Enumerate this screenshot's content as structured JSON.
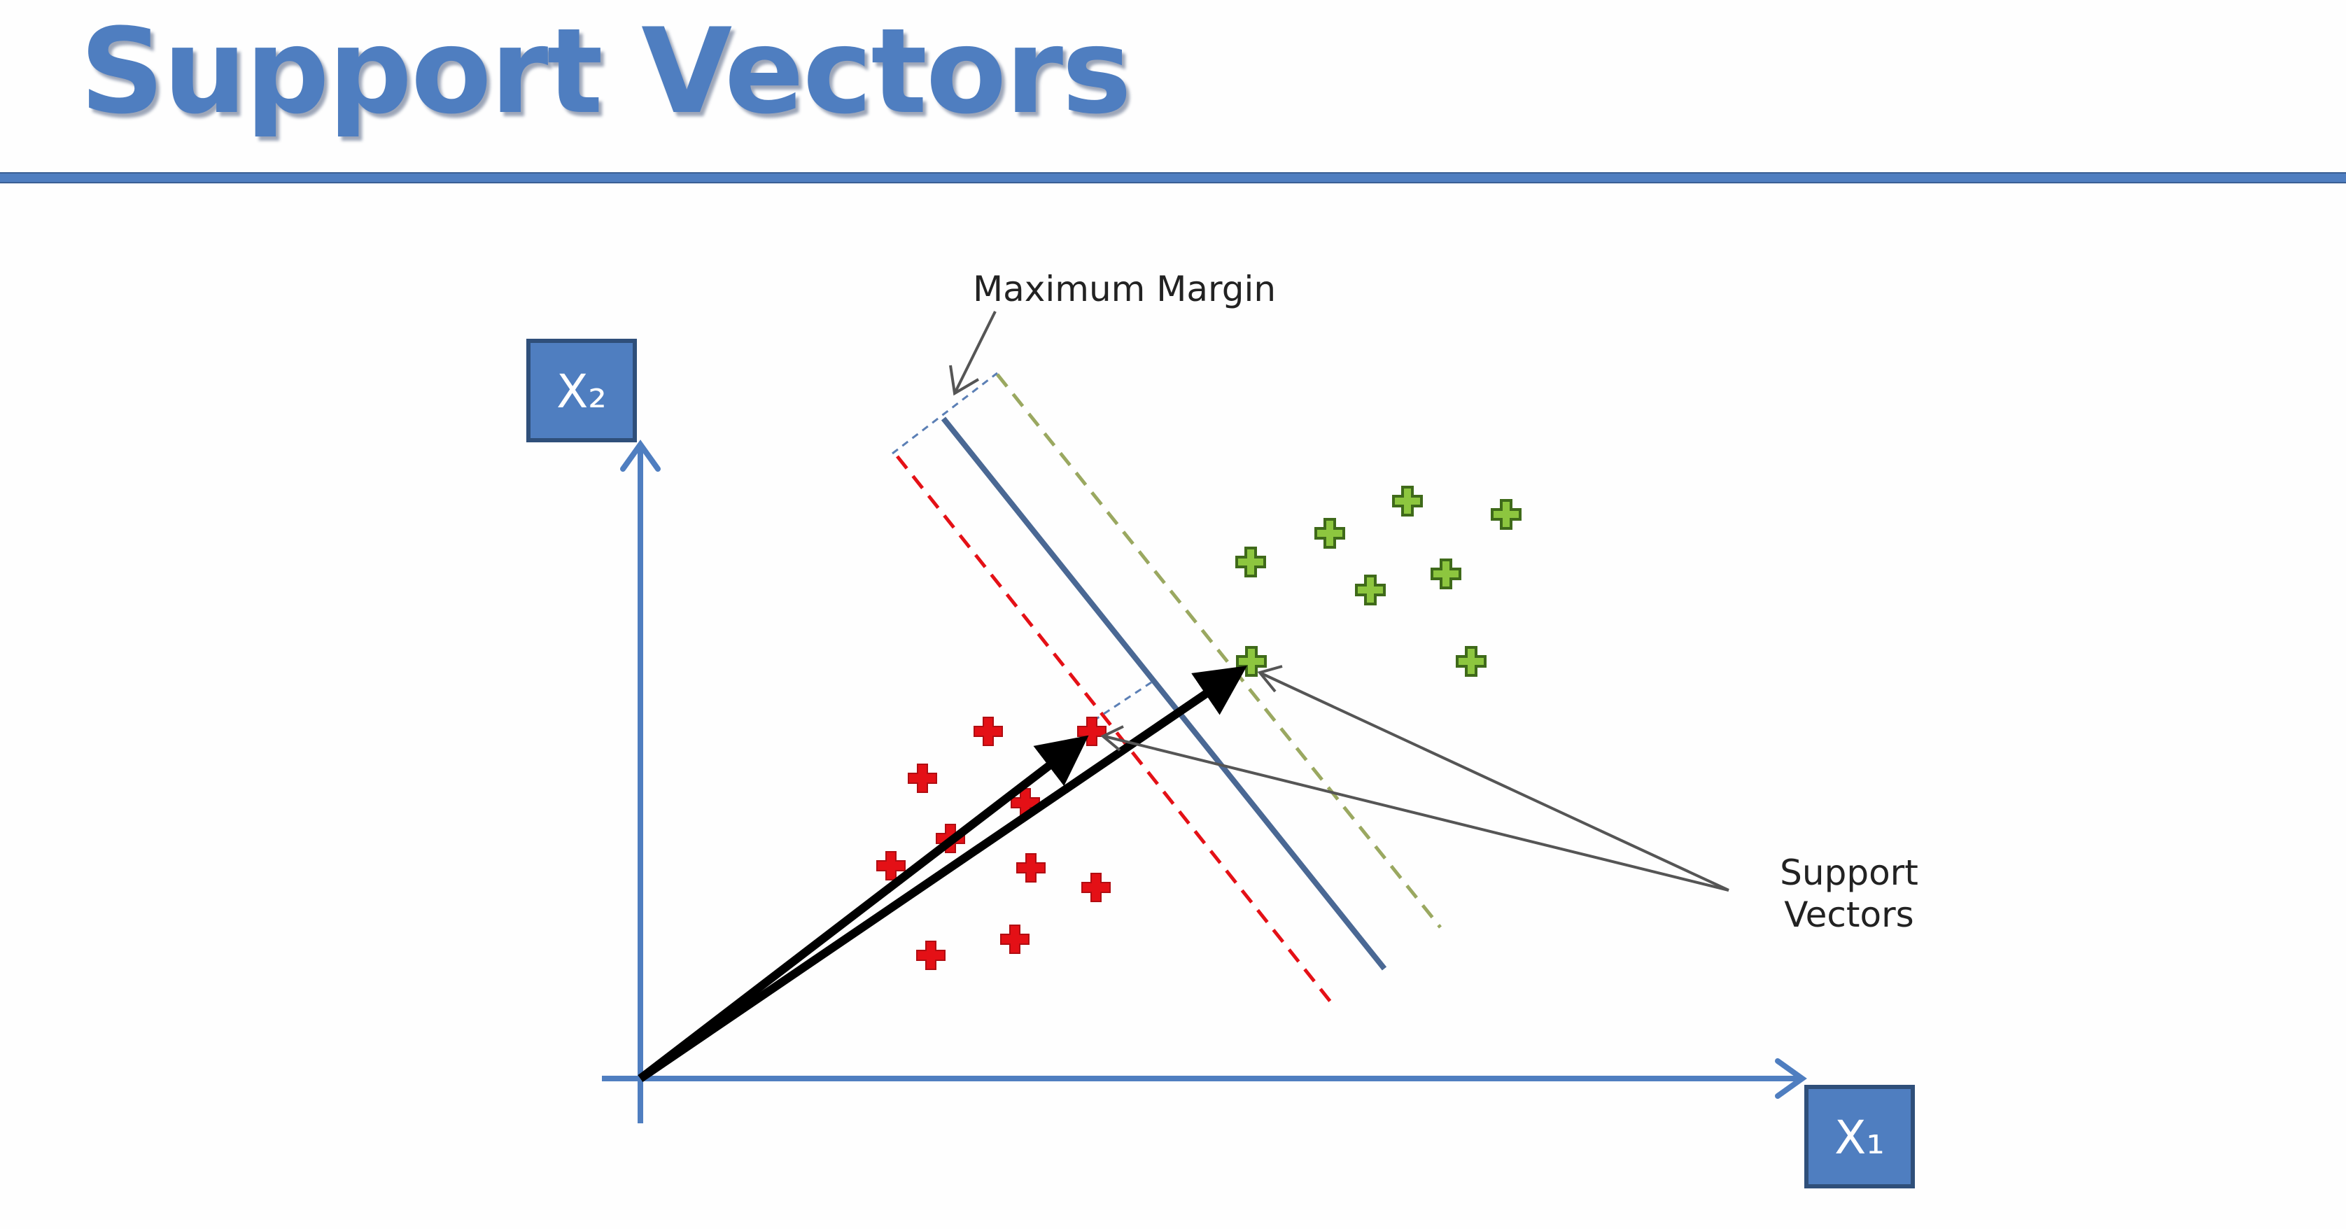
{
  "title": "Support Vectors",
  "labels": {
    "x2_axis": "X₂",
    "x1_axis": "X₁",
    "maximum_margin": "Maximum Margin",
    "support_vectors_line1": "Support",
    "support_vectors_line2": "Vectors"
  },
  "colors": {
    "accent": "#4f7ec0",
    "red_class": "#e41016",
    "green_class": "#8dc63f",
    "hyperplane": "#4a6894",
    "red_margin": "#e41016",
    "green_margin": "#9aa860",
    "arrow": "#000000"
  }
}
